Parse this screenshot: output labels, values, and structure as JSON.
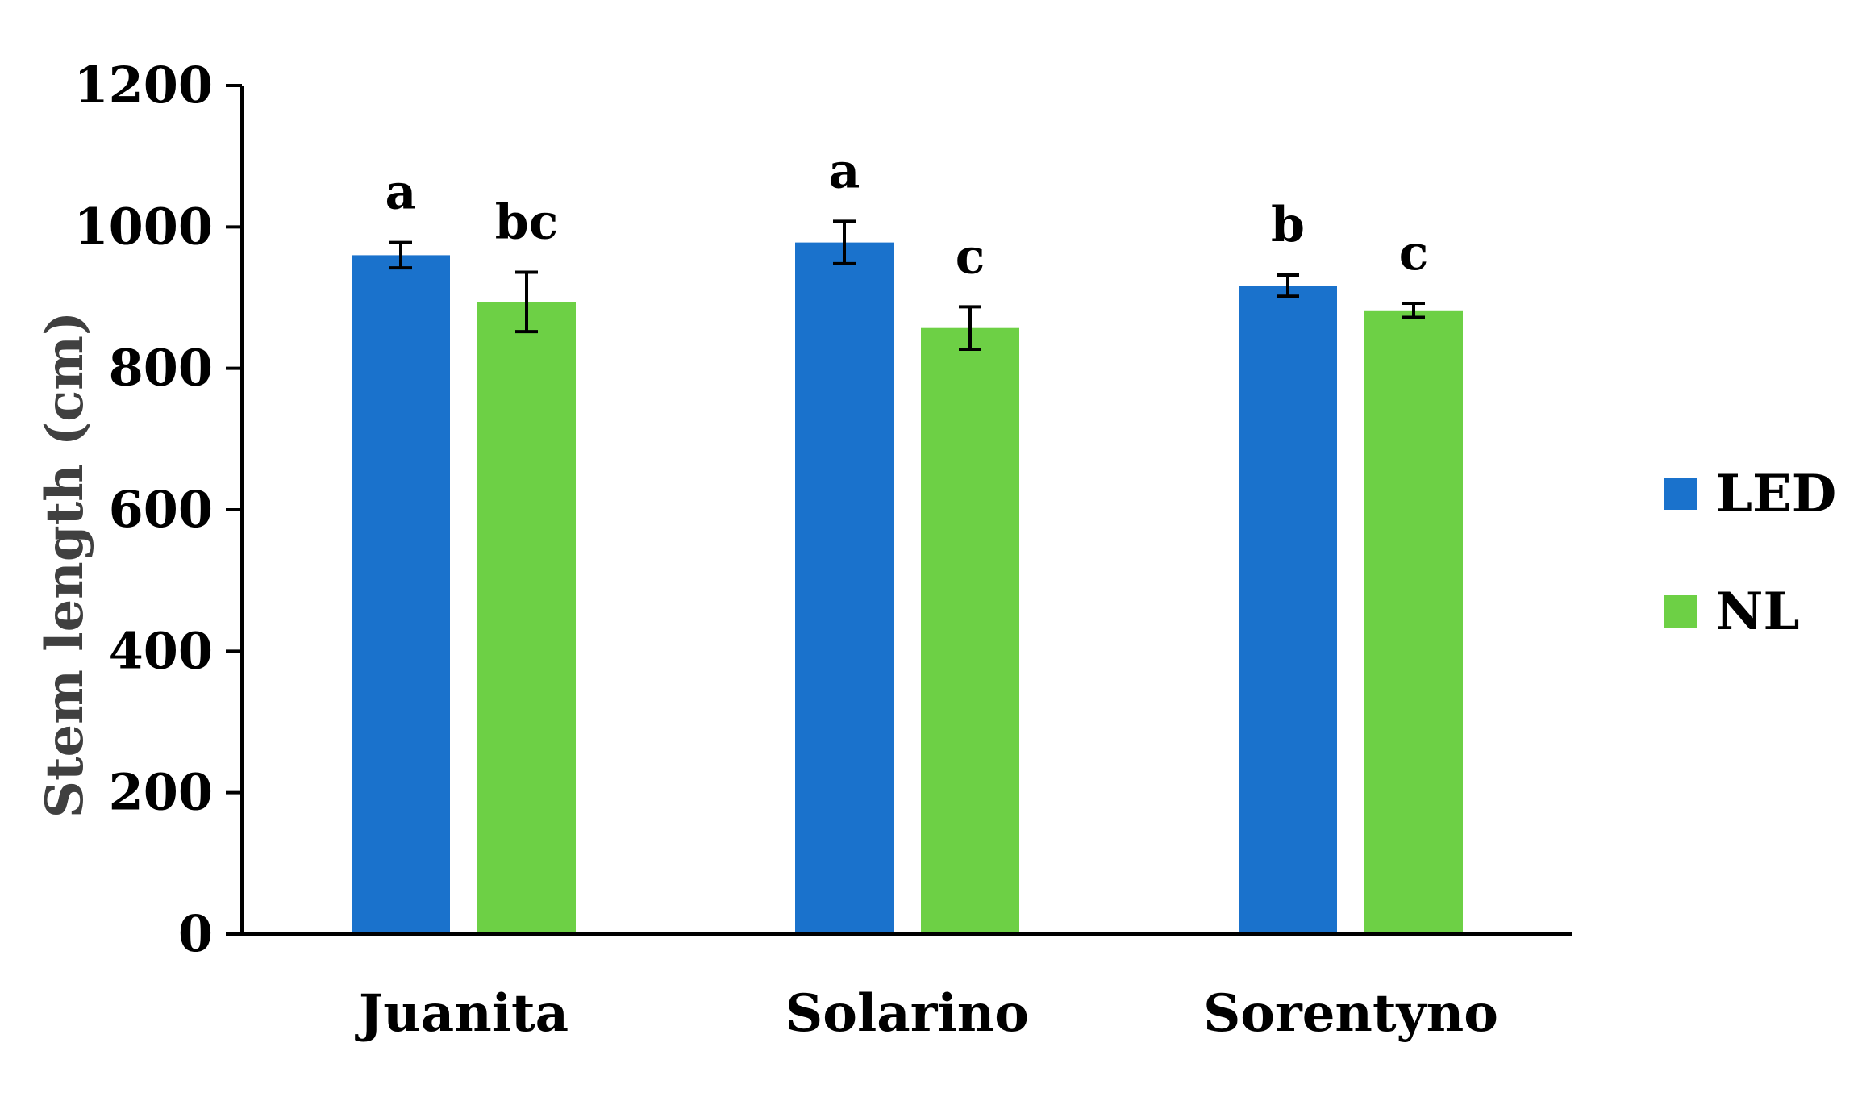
{
  "chart_data": {
    "type": "bar",
    "title": "",
    "xlabel": "",
    "ylabel": "Stem length (cm)",
    "ylim": [
      0,
      1200
    ],
    "yticks": [
      "0",
      "200",
      "400",
      "600",
      "800",
      "1000",
      "1200"
    ],
    "grid": false,
    "legend_position": "right",
    "categories": [
      "Juanita",
      "Solarino",
      "Sorentyno"
    ],
    "series": [
      {
        "name": "LED",
        "color": "#1A72CC",
        "values": [
          960,
          978,
          917
        ],
        "errors": [
          18,
          30,
          15
        ],
        "labels": [
          "a",
          "a",
          "b"
        ]
      },
      {
        "name": "NL",
        "color": "#6DD045",
        "values": [
          894,
          857,
          882
        ],
        "errors": [
          42,
          30,
          10
        ],
        "labels": [
          "bc",
          "c",
          "c"
        ]
      }
    ]
  }
}
